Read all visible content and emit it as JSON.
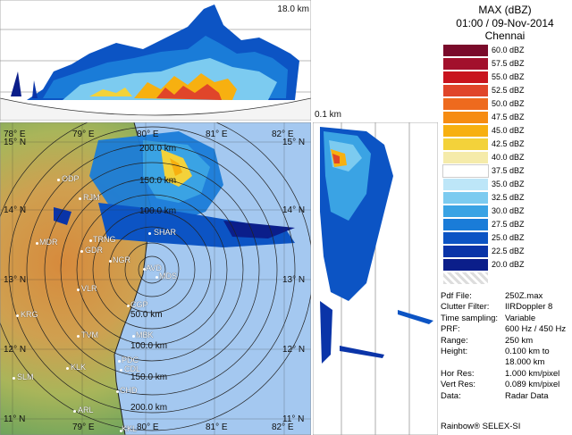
{
  "header": {
    "product": "MAX (dBZ)",
    "datetime": "01:00 / 09-Nov-2014",
    "station": "Chennai"
  },
  "top_panel": {
    "height_max_label": "18.0 km"
  },
  "side_panel": {
    "height_min_label": "0.1 km"
  },
  "legend": [
    {
      "label": "60.0 dBZ",
      "color": "#7a0a2a"
    },
    {
      "label": "57.5 dBZ",
      "color": "#a2102c"
    },
    {
      "label": "55.0 dBZ",
      "color": "#c8141e"
    },
    {
      "label": "52.5 dBZ",
      "color": "#e0452a"
    },
    {
      "label": "50.0 dBZ",
      "color": "#ee6a1e"
    },
    {
      "label": "47.5 dBZ",
      "color": "#f68c12"
    },
    {
      "label": "45.0 dBZ",
      "color": "#f7b010"
    },
    {
      "label": "42.5 dBZ",
      "color": "#f3d23a"
    },
    {
      "label": "40.0 dBZ",
      "color": "#f5ebaa"
    },
    {
      "label": "37.5 dBZ",
      "color": "#ffffff"
    },
    {
      "label": "35.0 dBZ",
      "color": "#bde6f8"
    },
    {
      "label": "32.5 dBZ",
      "color": "#7ccbf0"
    },
    {
      "label": "30.0 dBZ",
      "color": "#3aa3e4"
    },
    {
      "label": "27.5 dBZ",
      "color": "#1a7cd8"
    },
    {
      "label": "25.0 dBZ",
      "color": "#0c54c4"
    },
    {
      "label": "22.5 dBZ",
      "color": "#0a34a8"
    },
    {
      "label": "20.0 dBZ",
      "color": "#0b1e8a"
    }
  ],
  "meta": [
    {
      "key": "Pdf File:",
      "value": "250Z.max"
    },
    {
      "key": "Clutter Filter:",
      "value": "IIRDoppler 8"
    },
    {
      "key": "Time sampling:",
      "value": "Variable"
    },
    {
      "key": "PRF:",
      "value": "600 Hz / 450 Hz"
    },
    {
      "key": "Range:",
      "value": "250 km"
    },
    {
      "key": "Height:",
      "value": "0.100 km to"
    },
    {
      "key": "",
      "value": "18.000 km"
    },
    {
      "key": "Hor Res:",
      "value": "1.000 km/pixel"
    },
    {
      "key": "Vert Res:",
      "value": "0.089 km/pixel"
    },
    {
      "key": "Data:",
      "value": "Radar Data"
    }
  ],
  "footer": "Rainbow® SELEX-SI",
  "map": {
    "lon_top": [
      "78° E",
      "79° E",
      "80° E",
      "81° E",
      "82° E"
    ],
    "lon_bottom": [
      "79° E",
      "80° E",
      "81° E",
      "82° E"
    ],
    "lat_left": [
      "15° N",
      "14° N",
      "13° N",
      "12° N",
      "11° N"
    ],
    "lat_right": [
      "15° N",
      "14° N",
      "13° N",
      "12° N",
      "11° N"
    ],
    "range_rings": [
      "200.0 km",
      "150.0 km",
      "100.0 km",
      "50.0 km",
      "100.0 km",
      "150.0 km",
      "200.0 km"
    ],
    "cities": [
      "ODP",
      "RJM",
      "TRNG",
      "GDR",
      "MDR",
      "VLR",
      "KRG",
      "TVM",
      "SLM",
      "KLK",
      "ARL",
      "SHAR",
      "NGR",
      "AVD",
      "MDS",
      "CGP",
      "MBK",
      "PDC",
      "CDL",
      "CHD",
      "KKL"
    ]
  }
}
